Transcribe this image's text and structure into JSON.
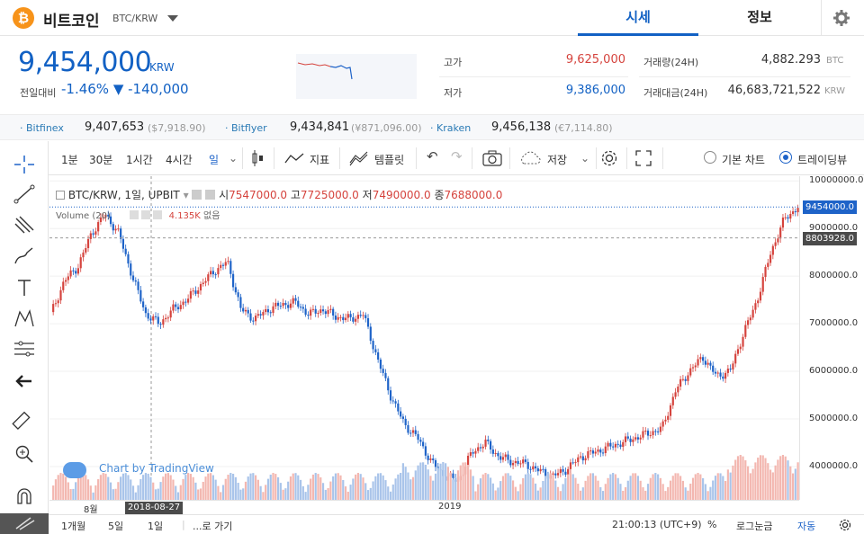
{
  "header": {
    "coin_logo": "₿",
    "coin_name": "비트코인",
    "coin_pair": "BTC/KRW",
    "tabs": [
      "시세",
      "정보"
    ],
    "settings_icon": "gear-icon"
  },
  "price": {
    "current": "9,454,000",
    "unit": "KRW",
    "change_label": "전일대비",
    "change_text": "-1.46% ▼ -140,000"
  },
  "stats": {
    "high_label": "고가",
    "high_value": "9,625,000",
    "low_label": "저가",
    "low_value": "9,386,000",
    "vol_label": "거래량(24H)",
    "vol_value": "4,882.293",
    "vol_unit": "BTC",
    "amt_label": "거래대금(24H)",
    "amt_value": "46,683,721,522",
    "amt_unit": "KRW"
  },
  "exchanges": [
    {
      "name": "· Bitfinex",
      "value": "9,407,653",
      "sub": "($7,918.90)"
    },
    {
      "name": "· Bitflyer",
      "value": "9,434,841",
      "sub": "(¥871,096.00)"
    },
    {
      "name": "· Kraken",
      "value": "9,456,138",
      "sub": "(€7,114.80)"
    }
  ],
  "toolbar": {
    "intervals": [
      "1분",
      "30분",
      "1시간",
      "4시간",
      "일"
    ],
    "indicators": "지표",
    "templates": "템플릿",
    "save": "저장",
    "basic_chart": "기본 차트",
    "tradingview": "트레이딩뷰"
  },
  "legend": {
    "symbol": "BTC/KRW, 1일, UPBIT",
    "open_label": "시",
    "open": "7547000.0",
    "high_label": "고",
    "high": "7725000.0",
    "low_label": "저",
    "low": "7490000.0",
    "close_label": "종",
    "close": "7688000.0",
    "volume_label": "Volume (20)",
    "volume_value": "4.135K",
    "volume_extra": "없음"
  },
  "watermark": "Chart by TradingView",
  "bottom": {
    "ranges": [
      "1개월",
      "5일",
      "1일"
    ],
    "goto": "...로 가기",
    "time": "21:00:13 (UTC+9)",
    "percent": "%",
    "log": "로그눈금",
    "auto": "자동"
  },
  "colors": {
    "accent": "#1261c4",
    "up": "#d5433d",
    "down": "#1e63c8",
    "crosshair_label": "#4a4a4a"
  },
  "chart_data": {
    "type": "candlestick",
    "symbol": "BTC/KRW",
    "interval": "1일",
    "exchange": "UPBIT",
    "ylim": [
      3300000,
      10100000
    ],
    "yticks": [
      "4000000.0",
      "5000000.0",
      "6000000.0",
      "7000000.0",
      "8000000.0",
      "9000000.0",
      "10000000.0"
    ],
    "xticks": [
      "8월",
      "2019"
    ],
    "crosshair_date": "2018-08-27",
    "price_labels": {
      "last": "9454000.0",
      "crosshair": "8803928.0"
    },
    "closes": [
      7200000,
      7900000,
      8200000,
      8900000,
      9300000,
      8900000,
      8000000,
      7200000,
      7000000,
      7300000,
      7500000,
      7800000,
      8100000,
      8300000,
      7300000,
      7100000,
      7300000,
      7400000,
      7450000,
      7200000,
      7300000,
      7150000,
      7100000,
      7200000,
      6300000,
      5500000,
      4900000,
      4600000,
      4100000,
      3800000,
      3700000,
      4300000,
      4500000,
      4200000,
      4100000,
      4050000,
      3900000,
      3800000,
      3950000,
      4200000,
      4300000,
      4400000,
      4500000,
      4600000,
      4700000,
      4800000,
      5600000,
      6000000,
      6300000,
      5900000,
      6000000,
      6800000,
      7500000,
      8500000,
      9200000,
      9450000
    ],
    "volume_label": "Volume (20)"
  }
}
